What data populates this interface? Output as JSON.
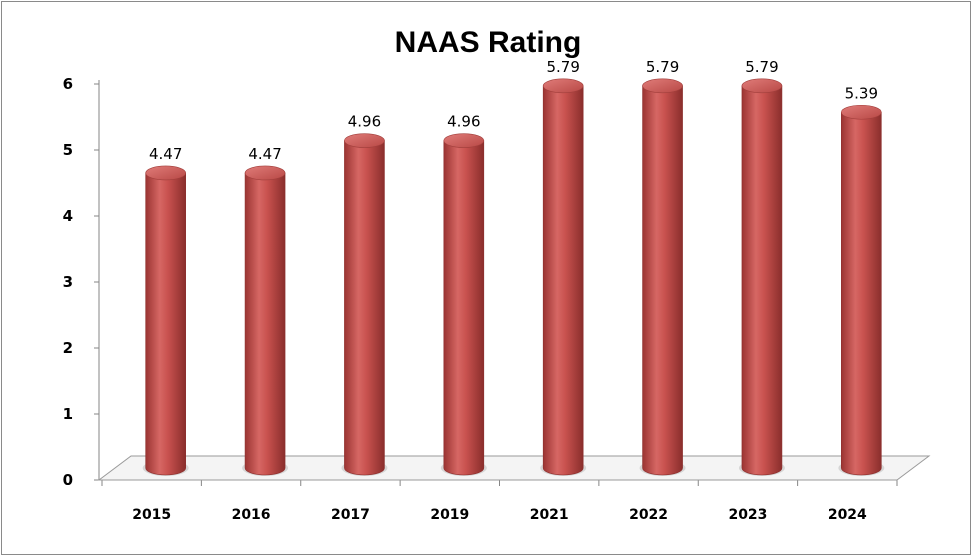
{
  "chart_data": {
    "type": "bar",
    "style": "3d-cylinder",
    "title": "NAAS Rating",
    "xlabel": "",
    "ylabel": "",
    "categories": [
      "2015",
      "2016",
      "2017",
      "2019",
      "2021",
      "2022",
      "2023",
      "2024"
    ],
    "values": [
      4.47,
      4.47,
      4.96,
      4.96,
      5.79,
      5.79,
      5.79,
      5.39
    ],
    "data_labels": [
      "4.47",
      "4.47",
      "4.96",
      "4.96",
      "5.79",
      "5.79",
      "5.79",
      "5.39"
    ],
    "yticks": [
      "0",
      "1",
      "2",
      "3",
      "4",
      "5",
      "6"
    ],
    "ylim": [
      0,
      6
    ],
    "grid": false,
    "legend": "none",
    "bar_color": "#c0504d"
  }
}
